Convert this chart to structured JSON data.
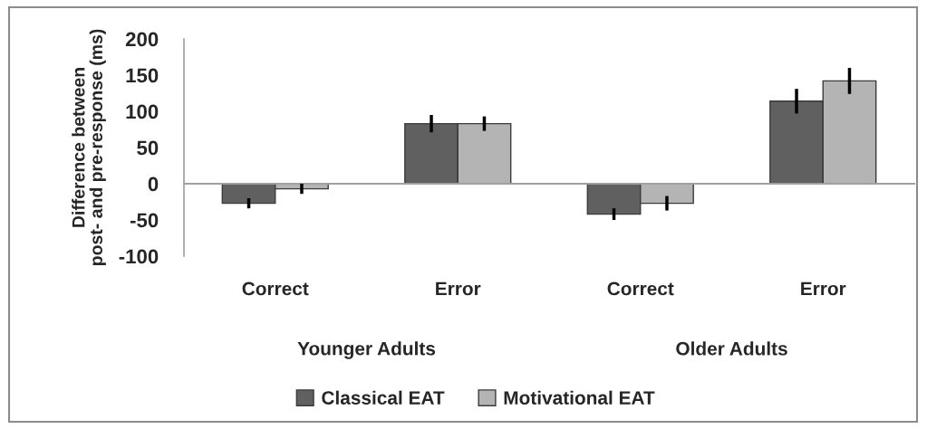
{
  "chart_data": {
    "type": "bar",
    "ylabel": "Difference between\npost- and pre-response (ms)",
    "categories": [
      "Correct",
      "Error",
      "Correct",
      "Error"
    ],
    "series": [
      {
        "name": "Classical EAT",
        "color": "#606060",
        "values": [
          -27,
          83,
          -42,
          114
        ],
        "errors": [
          7,
          12,
          8,
          17
        ]
      },
      {
        "name": "Motivational EAT",
        "color": "#b4b4b4",
        "values": [
          -7,
          83,
          -27,
          142
        ],
        "errors": [
          7,
          10,
          10,
          18
        ]
      }
    ],
    "ylim": [
      -100,
      200
    ],
    "yticks": [
      -100,
      -50,
      0,
      50,
      100,
      150,
      200
    ],
    "annotations": [
      "Younger Adults",
      "Older Adults"
    ],
    "legend": "bottom"
  }
}
